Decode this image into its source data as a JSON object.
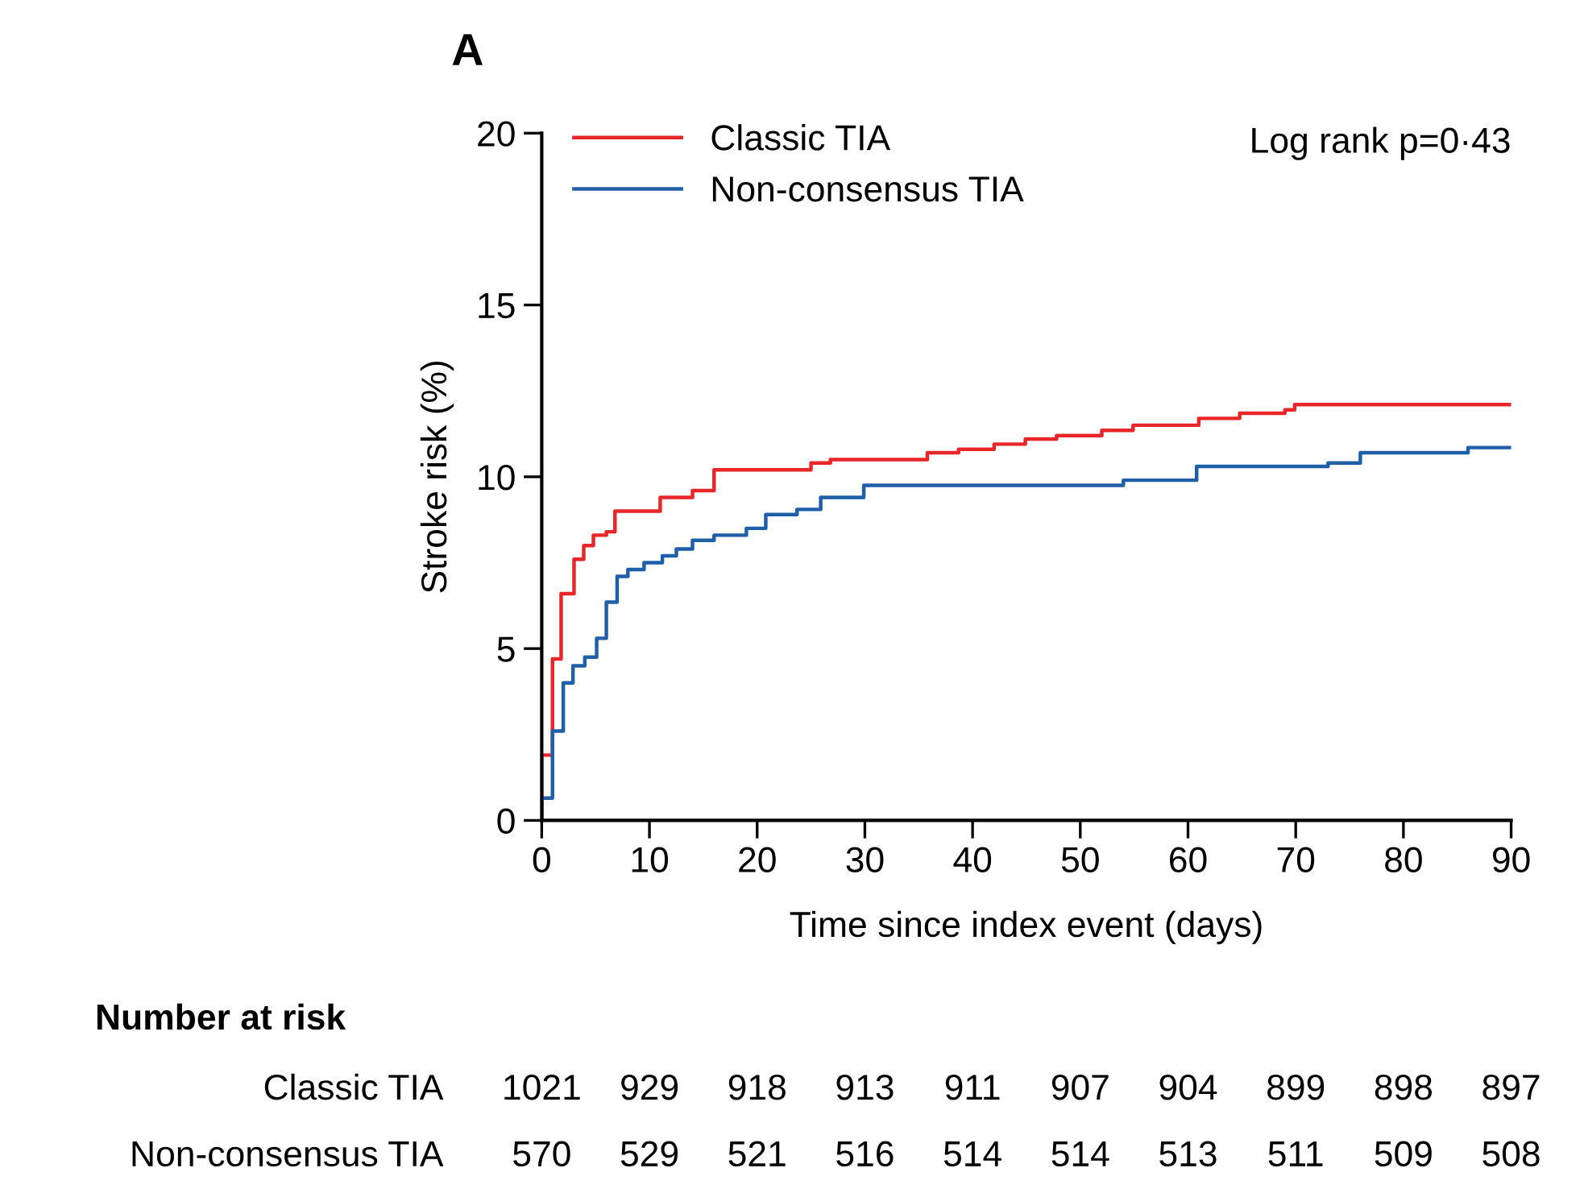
{
  "chart_data": {
    "type": "step",
    "title": "A",
    "xlabel": "Time since index event (days)",
    "ylabel": "Stroke risk (%)",
    "xlim": [
      0,
      90
    ],
    "xticks": [
      0,
      10,
      20,
      30,
      40,
      50,
      60,
      70,
      80,
      90
    ],
    "ylim": [
      0,
      20
    ],
    "yticks": [
      0,
      5,
      10,
      15,
      20
    ],
    "grid": false,
    "legend": "top left",
    "series": [
      {
        "name": "Classic TIA",
        "color": "#e8262a",
        "x": [
          0,
          0,
          1.0,
          1.8,
          3.0,
          3.9,
          4.8,
          6.0,
          6.8,
          11,
          14,
          16,
          25,
          26.8,
          35.8,
          38.7,
          42,
          44.9,
          47.8,
          52,
          54.9,
          61,
          64.8,
          69,
          69.9,
          90
        ],
        "values": [
          0,
          1.9,
          4.7,
          6.6,
          7.6,
          8.0,
          8.3,
          8.4,
          9.0,
          9.4,
          9.6,
          10.2,
          10.4,
          10.5,
          10.7,
          10.8,
          10.95,
          11.1,
          11.2,
          11.35,
          11.5,
          11.7,
          11.85,
          11.95,
          12.1,
          12.1
        ]
      },
      {
        "name": "Non-consensus TIA",
        "color": "#1f5fa8",
        "x": [
          0,
          0,
          1.0,
          2.0,
          2.9,
          4.0,
          5.1,
          6.0,
          7.0,
          8.0,
          9.5,
          11.2,
          12.5,
          14,
          16,
          19,
          20.8,
          23.7,
          25.9,
          29.9,
          54,
          60.8,
          73,
          76,
          86,
          90
        ],
        "values": [
          0,
          0.65,
          2.6,
          4.0,
          4.5,
          4.75,
          5.3,
          6.35,
          7.1,
          7.3,
          7.5,
          7.7,
          7.9,
          8.15,
          8.3,
          8.5,
          8.9,
          9.05,
          9.4,
          9.75,
          9.9,
          10.3,
          10.4,
          10.7,
          10.85,
          10.85
        ]
      }
    ],
    "annotations": [
      "Log rank p=0·43",
      "Number at risk",
      "Classic TIA",
      "1021",
      "929",
      "918",
      "913",
      "911",
      "907",
      "904",
      "899",
      "898",
      "897",
      "Non-consensus TIA",
      "570",
      "529",
      "521",
      "516",
      "514",
      "514",
      "513",
      "511",
      "509",
      "508"
    ]
  }
}
